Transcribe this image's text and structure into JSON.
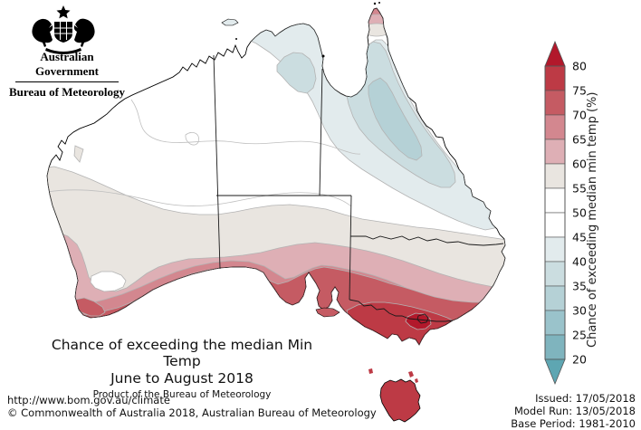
{
  "header": {
    "gov_label": "Australian Government",
    "bureau_label": "Bureau of Meteorology"
  },
  "title": {
    "line1": "Chance of exceeding the median Min Temp",
    "line2": "June to August 2018",
    "line3": "Product of the Bureau of Meteorology"
  },
  "colorbar": {
    "axis_label": "Chance of exceeding median min temp (%)",
    "tick_labels": [
      "80",
      "75",
      "70",
      "65",
      "60",
      "55",
      "50",
      "45",
      "40",
      "35",
      "30",
      "25",
      "20"
    ],
    "segment_colors": [
      "#bd3a45",
      "#c55b63",
      "#d3878f",
      "#deafb5",
      "#e9e5e0",
      "#ffffff",
      "#ffffff",
      "#e2ebed",
      "#cbdde0",
      "#b5d1d6",
      "#9ac3cb",
      "#7fb4be"
    ],
    "above_color": "#b2182b",
    "below_color": "#5ea6b2"
  },
  "palette": {
    "p80": "#b2182b",
    "p75_80": "#bd3a45",
    "p70_75": "#c55b63",
    "p65_70": "#d3878f",
    "p60_65": "#deafb5",
    "p55_60": "#e9e5e0",
    "p50_55": "#ffffff",
    "p45_50": "#ffffff",
    "p40_45": "#e2ebed",
    "p35_40": "#cbdde0",
    "p30_35": "#b5d1d6",
    "coast": "#000000",
    "contour": "#b3b3b3",
    "faint_contour": "#bfbfbf",
    "border": "#1a1a1a",
    "bar_outline": "#555555",
    "white": "#ffffff"
  },
  "footer": {
    "url": "http://www.bom.gov.au/climate",
    "copyright": "© Commonwealth of Australia 2018, Australian Bureau of Meteorology"
  },
  "issued": {
    "issued": "Issued: 17/05/2018",
    "model_run": "Model Run: 13/05/2018",
    "base_period": "Base Period: 1981-2010"
  },
  "map": {
    "legend_title": "Chance of exceeding median min temp (%)",
    "legend_range": [
      20,
      80
    ],
    "legend_step": 5,
    "regions": [
      {
        "region": "Tasmania",
        "chance_pct": "75-80"
      },
      {
        "region": "Victoria and southern NSW",
        "chance_pct": "75-80+"
      },
      {
        "region": "Southern coastal SA and SE coast",
        "chance_pct": "65-75"
      },
      {
        "region": "Southwest WA tip",
        "chance_pct": "65-75"
      },
      {
        "region": "Southern inland belt",
        "chance_pct": "55-65"
      },
      {
        "region": "Central Australia",
        "chance_pct": "45-55"
      },
      {
        "region": "Kimberley and northwest WA",
        "chance_pct": "45-50"
      },
      {
        "region": "Top End NT and northern QLD",
        "chance_pct": "40-45"
      },
      {
        "region": "Inland northeast QLD",
        "chance_pct": "30-40"
      },
      {
        "region": "Cape York tip",
        "chance_pct": "60-70"
      }
    ]
  }
}
